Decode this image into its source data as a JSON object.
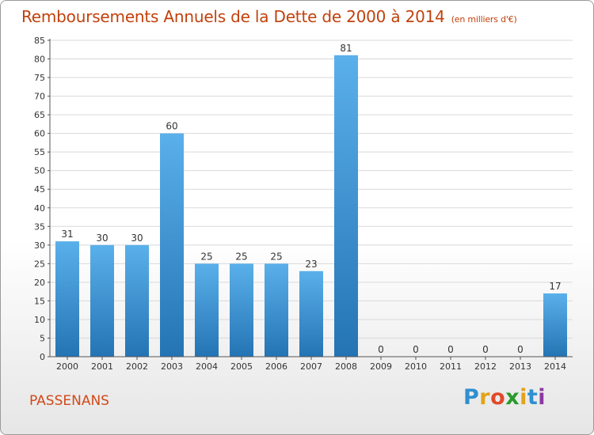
{
  "header": {
    "title": "Remboursements Annuels de la Dette de 2000 à 2014",
    "unit": "(en milliers d'€)"
  },
  "commune": "PASSENANS",
  "logo": {
    "letters": [
      "P",
      "r",
      "o",
      "x",
      "i",
      "t",
      "i"
    ],
    "colors": [
      "#2f8fd0",
      "#e2a21a",
      "#e04a2a",
      "#2a9a2a",
      "#e2a21a",
      "#2f8fd0",
      "#8a3aa0"
    ]
  },
  "colors": {
    "bar_top": "#5ab0ea",
    "bar_bottom": "#2474b4",
    "grid": "#d9d9d9",
    "text": "#333333"
  },
  "chart_data": {
    "type": "bar",
    "title": "Remboursements Annuels de la Dette de 2000 à 2014",
    "subtitle": "(en milliers d'€)",
    "categories": [
      "2000",
      "2001",
      "2002",
      "2003",
      "2004",
      "2005",
      "2006",
      "2007",
      "2008",
      "2009",
      "2010",
      "2011",
      "2012",
      "2013",
      "2014"
    ],
    "values": [
      31,
      30,
      30,
      60,
      25,
      25,
      25,
      23,
      81,
      0,
      0,
      0,
      0,
      0,
      17
    ],
    "ylim": [
      0,
      85
    ],
    "yticks": [
      0,
      5,
      10,
      15,
      20,
      25,
      30,
      35,
      40,
      45,
      50,
      55,
      60,
      65,
      70,
      75,
      80,
      85
    ],
    "grid": true,
    "data_labels": true
  }
}
